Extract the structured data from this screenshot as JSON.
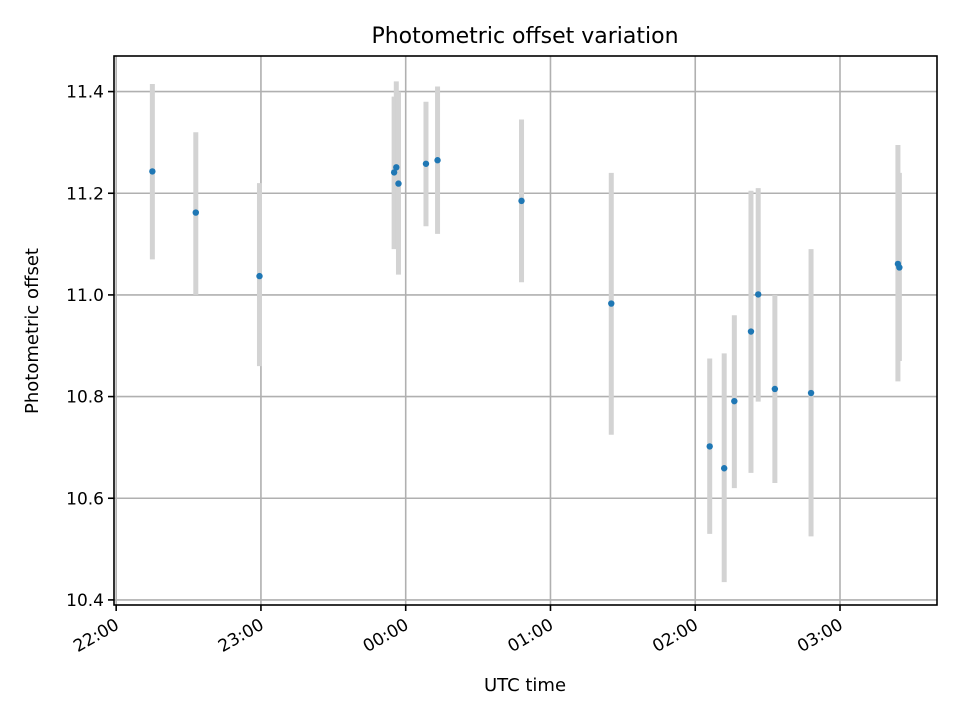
{
  "chart_data": {
    "type": "scatter",
    "title": "Photometric offset variation",
    "xlabel": "UTC time",
    "ylabel": "Photometric offset",
    "x_unit": "hour",
    "x_tick_hours": [
      22,
      23,
      24,
      25,
      26,
      27
    ],
    "x_tick_labels": [
      "22:00",
      "23:00",
      "00:00",
      "01:00",
      "02:00",
      "03:00"
    ],
    "xlim": [
      21.985,
      27.67
    ],
    "y_ticks": [
      10.4,
      10.6,
      10.8,
      11.0,
      11.2,
      11.4
    ],
    "y_tick_labels": [
      "10.4",
      "10.6",
      "10.8",
      "11.0",
      "11.2",
      "11.4"
    ],
    "ylim": [
      10.39,
      11.47
    ],
    "grid": true,
    "colors": {
      "point": "#1f77b4",
      "errorbar": "#d3d3d3",
      "grid": "#b0b0b0"
    },
    "points": [
      {
        "time": "22:15",
        "x": 22.25,
        "y": 11.243,
        "ylow": 11.07,
        "yhigh": 11.415
      },
      {
        "time": "22:33",
        "x": 22.55,
        "y": 11.162,
        "ylow": 11.0,
        "yhigh": 11.32
      },
      {
        "time": "22:59",
        "x": 22.99,
        "y": 11.037,
        "ylow": 10.86,
        "yhigh": 11.22
      },
      {
        "time": "23:55",
        "x": 23.92,
        "y": 11.241,
        "ylow": 11.09,
        "yhigh": 11.39
      },
      {
        "time": "23:56",
        "x": 23.935,
        "y": 11.251,
        "ylow": 11.1,
        "yhigh": 11.42
      },
      {
        "time": "23:57",
        "x": 23.95,
        "y": 11.219,
        "ylow": 11.04,
        "yhigh": 11.4
      },
      {
        "time": "00:08",
        "x": 24.14,
        "y": 11.258,
        "ylow": 11.135,
        "yhigh": 11.38
      },
      {
        "time": "00:13",
        "x": 24.22,
        "y": 11.265,
        "ylow": 11.12,
        "yhigh": 11.41
      },
      {
        "time": "00:48",
        "x": 24.8,
        "y": 11.185,
        "ylow": 11.025,
        "yhigh": 11.345
      },
      {
        "time": "01:25",
        "x": 25.42,
        "y": 10.983,
        "ylow": 10.725,
        "yhigh": 11.24
      },
      {
        "time": "02:06",
        "x": 26.1,
        "y": 10.702,
        "ylow": 10.53,
        "yhigh": 10.875
      },
      {
        "time": "02:12",
        "x": 26.2,
        "y": 10.659,
        "ylow": 10.435,
        "yhigh": 10.885
      },
      {
        "time": "02:16",
        "x": 26.27,
        "y": 10.791,
        "ylow": 10.62,
        "yhigh": 10.96
      },
      {
        "time": "02:23",
        "x": 26.385,
        "y": 10.928,
        "ylow": 10.65,
        "yhigh": 11.205
      },
      {
        "time": "02:26",
        "x": 26.435,
        "y": 11.001,
        "ylow": 10.79,
        "yhigh": 11.21
      },
      {
        "time": "02:33",
        "x": 26.55,
        "y": 10.815,
        "ylow": 10.63,
        "yhigh": 11.0
      },
      {
        "time": "02:48",
        "x": 26.8,
        "y": 10.807,
        "ylow": 10.525,
        "yhigh": 11.09
      },
      {
        "time": "03:24",
        "x": 27.4,
        "y": 11.061,
        "ylow": 10.83,
        "yhigh": 11.295
      },
      {
        "time": "03:25",
        "x": 27.41,
        "y": 11.054,
        "ylow": 10.87,
        "yhigh": 11.24
      }
    ]
  }
}
